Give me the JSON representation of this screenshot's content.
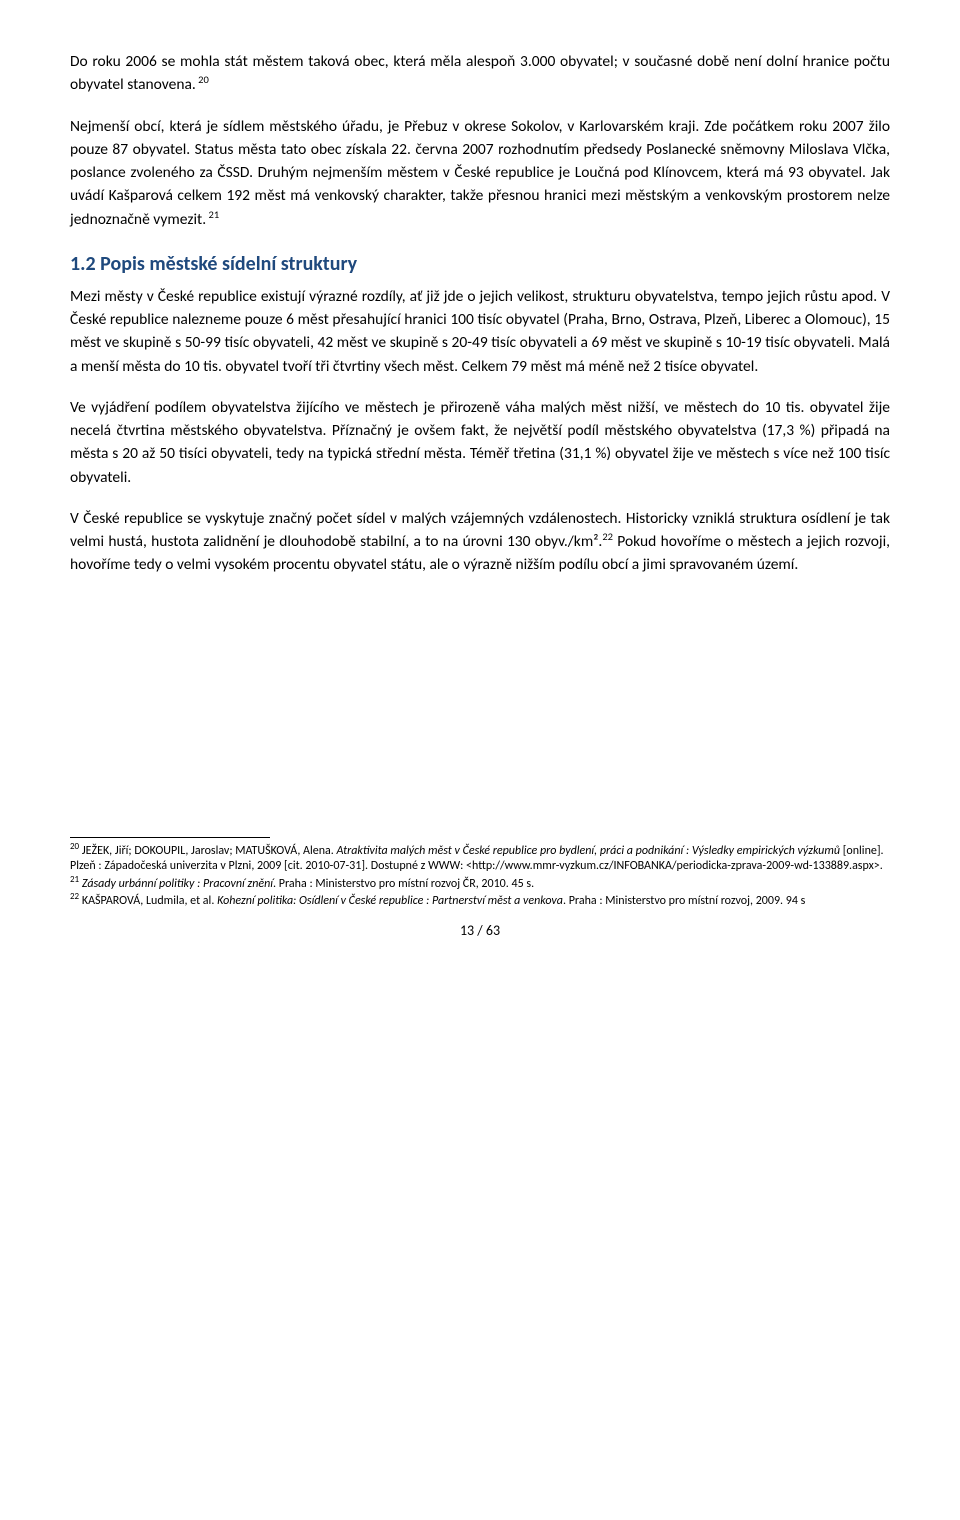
{
  "paragraphs": {
    "p1_a": "Do roku 2006 se mohla stát městem taková obec, která měla alespoň 3.000 obyvatel; v současné době není dolní hranice počtu obyvatel stanovena.",
    "p1_sup": " 20",
    "p2_a": "Nejmenší obcí, která je sídlem městského úřadu, je Přebuz v okrese Sokolov, v Karlovarském kraji. Zde počátkem roku 2007 žilo pouze 87 obyvatel. Status města tato obec získala 22. června 2007 rozhodnutím předsedy Poslanecké sněmovny Miloslava Vlčka, poslance zvoleného za ČSSD. Druhým nejmenším městem v České republice je Loučná pod Klínovcem, která má 93 obyvatel. Jak uvádí Kašparová celkem 192 měst má venkovský charakter, takže přesnou hranici mezi městským a venkovským prostorem nelze jednoznačně vymezit.",
    "p2_sup": " 21",
    "heading": "1.2 Popis městské sídelní struktury",
    "p3": "Mezi městy v České republice existují výrazné rozdíly, ať již jde o jejich velikost, strukturu obyvatelstva, tempo jejich růstu apod. V České republice nalezneme pouze 6 měst přesahující hranici 100 tisíc obyvatel (Praha, Brno, Ostrava, Plzeň, Liberec a Olomouc), 15 měst ve skupině s 50-99 tisíc obyvateli, 42 měst ve skupině s 20-49 tisíc obyvateli a 69 měst ve skupině s 10-19 tisíc obyvateli. Malá a menší města do 10 tis. obyvatel tvoří tři čtvrtiny všech měst. Celkem 79 měst má méně než 2 tisíce obyvatel.",
    "p4": "Ve vyjádření podílem obyvatelstva žijícího ve městech je přirozeně váha malých měst nižší, ve městech do 10 tis. obyvatel žije necelá čtvrtina městského obyvatelstva. Příznačný je ovšem fakt, že největší podíl městského obyvatelstva (17,3 %) připadá na města s 20 až 50 tisíci obyvateli, tedy na typická střední města. Téměř třetina (31,1 %) obyvatel žije ve městech s více než 100 tisíc obyvateli.",
    "p5_a": "V České republice se vyskytuje značný počet sídel v malých vzájemných vzdálenostech. Historicky vzniklá struktura osídlení je tak velmi hustá, hustota zalidnění je dlouhodobě stabilní, a to na úrovni 130 obyv./km².",
    "p5_sup": "22",
    "p5_b": " Pokud hovoříme o městech a jejich rozvoji, hovoříme tedy o velmi vysokém procentu obyvatel státu, ale o výrazně nižším podílu obcí a jimi spravovaném území."
  },
  "footnotes": {
    "f20_sup": "20",
    "f20_a": " JEŽEK, Jiří; DOKOUPIL, Jaroslav; MATUŠKOVÁ, Alena. ",
    "f20_italic": "Atraktivita malých měst v České republice pro bydlení, práci a podnikání : Výsledky empirických výzkumů",
    "f20_b": " [online]. Plzeň : Západočeská univerzita v Plzni, 2009 [cit. 2010-07-31]. Dostupné z WWW: <http://www.mmr-vyzkum.cz/INFOBANKA/periodicka-zprava-2009-wd-133889.aspx>.",
    "f21_sup": "21",
    "f21_italic": " Zásady urbánní politiky : Pracovní znění",
    "f21_b": ". Praha : Ministerstvo pro místní rozvoj ČR, 2010. 45 s.",
    "f22_sup": "22",
    "f22_a": " KAŠPAROVÁ, Ludmila, et al. ",
    "f22_italic": "Kohezní politika: Osídlení v České republice : Partnerství měst a venkova",
    "f22_b": ". Praha : Ministerstvo pro místní rozvoj, 2009. 94 s"
  },
  "page_number": "13 / 63"
}
